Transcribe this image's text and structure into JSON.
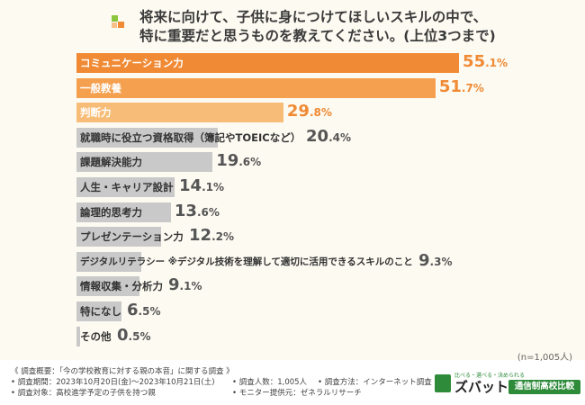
{
  "chart_data": {
    "type": "bar",
    "orientation": "horizontal",
    "title_line1": "将来に向けて、子供に身につけてほしいスキルの中で、",
    "title_line2": "特に重要だと思うものを教えてください。(上位3つまで)",
    "unit": "%",
    "categories": [
      "コミュニケーション力",
      "一般教養",
      "判断力",
      "就職時に役立つ資格取得（簿記やTOEICなど）",
      "課題解決能力",
      "人生・キャリア設計",
      "論理的思考力",
      "プレゼンテーション力",
      "デジタルリテラシー ※デジタル技術を理解して適切に活用できるスキルのこと",
      "情報収集・分析力",
      "特になし",
      "その他"
    ],
    "values": [
      55.1,
      51.7,
      29.8,
      20.4,
      19.6,
      14.1,
      13.6,
      12.2,
      9.3,
      9.1,
      6.5,
      0.5
    ],
    "xlim": [
      0,
      56
    ],
    "sample_size": "(n=1,005人)",
    "colors": {
      "top1": "#f08a34",
      "top2": "#f5a04e",
      "top3": "#f7bd78",
      "other": "#c9c9c9",
      "value_top": "#f08a34",
      "value_other": "#555555"
    }
  },
  "footer": {
    "overview": "《 調査概要：「今の学校教育に対する親の本音」に関する調査 》",
    "period": "• 調査期間：2023年10月20日(金)～2023年10月21日(土)",
    "respondents": "• 調査人数：1,005人",
    "method": "• 調査方法：インターネット調査",
    "target": "• 調査対象：高校進学予定の子供を持つ親",
    "provider": "• モニター提供元：ゼネラルリサーチ"
  },
  "logo": {
    "tagline": "比べる・選べる・決められる",
    "brand": "ズバット",
    "service": "通信制高校比較"
  }
}
